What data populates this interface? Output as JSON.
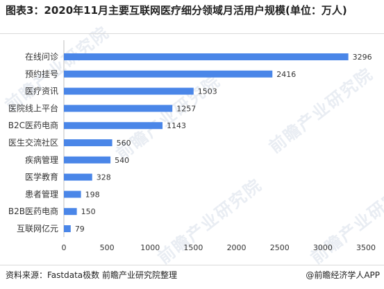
{
  "title": "图表3：2020年11月主要互联网医疗细分领域月活用户规模(单位：万人)",
  "source": "资料来源：Fastdata极数 前瞻产业研究院整理",
  "brand": "@前瞻经济学人APP",
  "watermark": "前瞻产业研究院",
  "colors": {
    "bar": "#4a86e8",
    "axis": "#bfbfbf"
  },
  "chart_data": {
    "type": "bar",
    "orientation": "horizontal",
    "title": "图表3：2020年11月主要互联网医疗细分领域月活用户规模(单位：万人)",
    "xlabel": "",
    "ylabel": "",
    "xlim": [
      0,
      3500
    ],
    "xticks": [
      0,
      500,
      1000,
      1500,
      2000,
      2500,
      3000,
      3500
    ],
    "grid": false,
    "categories": [
      "在线问诊",
      "预约挂号",
      "医疗资讯",
      "医院线上平台",
      "B2C医药电商",
      "医生交流社区",
      "疾病管理",
      "医学教育",
      "患者管理",
      "B2B医药电商",
      "互联网亿元"
    ],
    "values": [
      3296,
      2416,
      1503,
      1257,
      1143,
      560,
      540,
      328,
      198,
      150,
      79
    ]
  }
}
